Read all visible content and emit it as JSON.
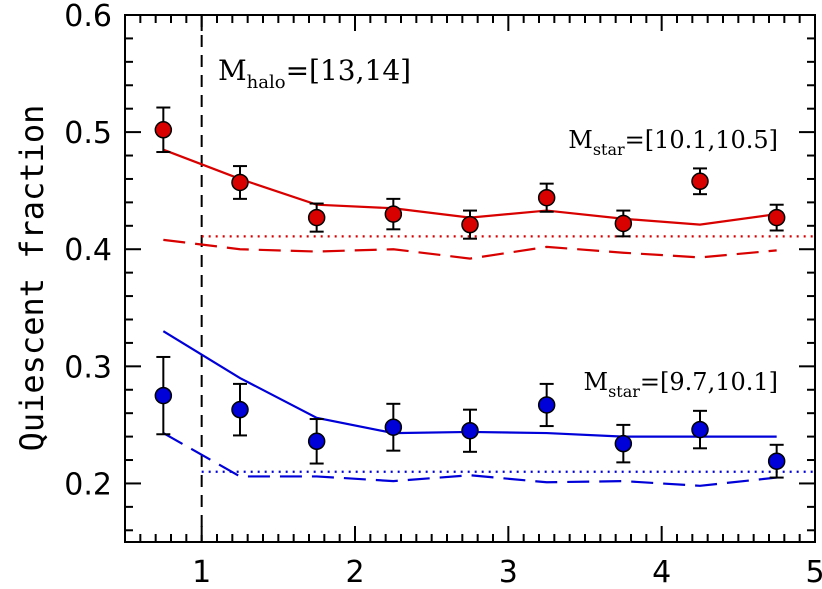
{
  "chart_data": {
    "type": "scatter",
    "title": "",
    "xlabel": "",
    "ylabel": "Quiescent fraction",
    "xlim": [
      0.5,
      5
    ],
    "ylim": [
      0.15,
      0.6
    ],
    "x_ticks": [
      "1",
      "2",
      "3",
      "4",
      "5"
    ],
    "y_ticks": [
      "0.2",
      "0.3",
      "0.4",
      "0.5",
      "0.6"
    ],
    "grid": false,
    "annotations": {
      "halo": {
        "main": "M",
        "sub": "halo",
        "range": "=[13,14]"
      },
      "red_label": {
        "main": "M",
        "sub": "star",
        "range": "=[10.1,10.5]"
      },
      "blue_label": {
        "main": "M",
        "sub": "star",
        "range": "=[9.7,10.1]"
      }
    },
    "vertical_dashed_line_x": 1.0,
    "series": [
      {
        "color": "#d90000",
        "points": [
          {
            "x": 0.75,
            "y": 0.502,
            "err": 0.019
          },
          {
            "x": 1.25,
            "y": 0.457,
            "err": 0.014
          },
          {
            "x": 1.75,
            "y": 0.427,
            "err": 0.012
          },
          {
            "x": 2.25,
            "y": 0.43,
            "err": 0.013
          },
          {
            "x": 2.75,
            "y": 0.421,
            "err": 0.012
          },
          {
            "x": 3.25,
            "y": 0.444,
            "err": 0.012
          },
          {
            "x": 3.75,
            "y": 0.422,
            "err": 0.011
          },
          {
            "x": 4.25,
            "y": 0.458,
            "err": 0.011
          },
          {
            "x": 4.75,
            "y": 0.427,
            "err": 0.011
          }
        ],
        "solid_line": {
          "x": [
            0.75,
            1.25,
            1.75,
            2.25,
            2.75,
            3.25,
            3.75,
            4.25,
            4.75
          ],
          "y": [
            0.485,
            0.46,
            0.438,
            0.435,
            0.427,
            0.433,
            0.426,
            0.421,
            0.43
          ]
        },
        "dashed_line": {
          "x": [
            0.75,
            1.25,
            1.75,
            2.25,
            2.75,
            3.25,
            3.75,
            4.25,
            4.75
          ],
          "y": [
            0.408,
            0.4,
            0.398,
            0.4,
            0.392,
            0.402,
            0.397,
            0.393,
            0.399
          ]
        },
        "dotted_line": {
          "x": [
            1.0,
            5.0
          ],
          "y": [
            0.411,
            0.411
          ]
        }
      },
      {
        "color": "#0000d9",
        "points": [
          {
            "x": 0.75,
            "y": 0.275,
            "err": 0.033
          },
          {
            "x": 1.25,
            "y": 0.263,
            "err": 0.022
          },
          {
            "x": 1.75,
            "y": 0.236,
            "err": 0.019
          },
          {
            "x": 2.25,
            "y": 0.248,
            "err": 0.02
          },
          {
            "x": 2.75,
            "y": 0.245,
            "err": 0.018
          },
          {
            "x": 3.25,
            "y": 0.267,
            "err": 0.018
          },
          {
            "x": 3.75,
            "y": 0.234,
            "err": 0.016
          },
          {
            "x": 4.25,
            "y": 0.246,
            "err": 0.016
          },
          {
            "x": 4.75,
            "y": 0.219,
            "err": 0.014
          }
        ],
        "solid_line": {
          "x": [
            0.75,
            1.25,
            1.75,
            2.25,
            2.75,
            3.25,
            3.75,
            4.25,
            4.75
          ],
          "y": [
            0.33,
            0.29,
            0.256,
            0.243,
            0.244,
            0.243,
            0.24,
            0.24,
            0.24
          ]
        },
        "dashed_line": {
          "x": [
            0.75,
            1.25,
            1.75,
            2.25,
            2.75,
            3.25,
            3.75,
            4.25,
            4.75
          ],
          "y": [
            0.243,
            0.206,
            0.206,
            0.202,
            0.207,
            0.201,
            0.202,
            0.198,
            0.205
          ]
        },
        "dotted_line": {
          "x": [
            1.0,
            5.0
          ],
          "y": [
            0.21,
            0.21
          ]
        }
      }
    ]
  }
}
